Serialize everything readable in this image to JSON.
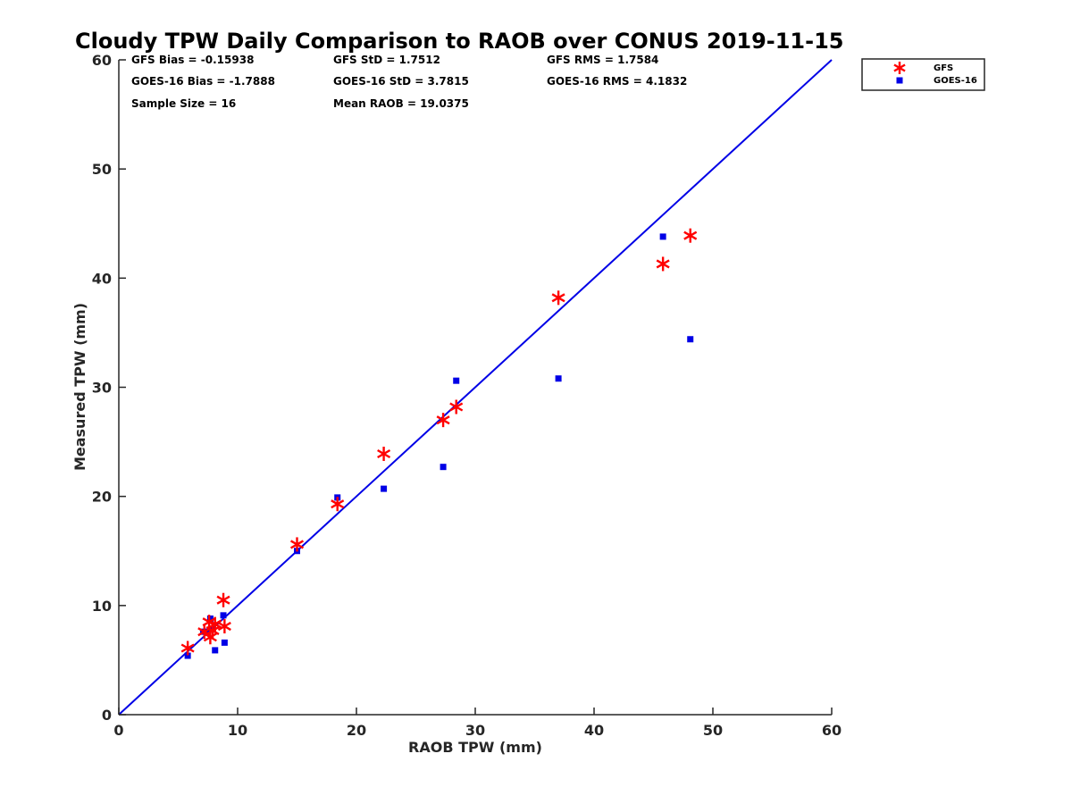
{
  "chart_data": {
    "type": "scatter",
    "title": "Cloudy TPW Daily Comparison to RAOB over CONUS 2019-11-15",
    "xlabel": "RAOB TPW (mm)",
    "ylabel": "Measured TPW (mm)",
    "xlim": [
      0,
      60
    ],
    "ylim": [
      0,
      60
    ],
    "xticks": [
      "0",
      "10",
      "20",
      "30",
      "40",
      "50",
      "60"
    ],
    "yticks": [
      "0",
      "10",
      "20",
      "30",
      "40",
      "50",
      "60"
    ],
    "grid": false,
    "legend_position": "top-right, outside plot",
    "reference_line": {
      "x": [
        0,
        60
      ],
      "y": [
        0,
        60
      ],
      "color": "#0000e6"
    },
    "stats": [
      "GFS Bias = -0.15938",
      "GFS StD = 1.7512",
      "GFS RMS = 1.7584",
      "GOES-16 Bias = -1.7888",
      "GOES-16 StD = 3.7815",
      "GOES-16 RMS = 4.1832",
      "Sample Size = 16",
      "Mean RAOB = 19.0375"
    ],
    "series": [
      {
        "name": "GFS",
        "marker": "asterisk",
        "color": "#ff0000",
        "x": [
          5.8,
          7.2,
          7.6,
          7.7,
          8.1,
          8.8,
          8.9,
          15.0,
          18.4,
          22.3,
          27.3,
          28.4,
          37.0,
          45.8,
          48.1,
          7.9
        ],
        "y": [
          6.1,
          7.6,
          8.5,
          7.1,
          8.3,
          10.5,
          8.1,
          15.6,
          19.3,
          23.9,
          27.0,
          28.2,
          38.2,
          41.3,
          43.9,
          7.7
        ]
      },
      {
        "name": "GOES-16",
        "marker": "square",
        "color": "#0000e6",
        "x": [
          5.8,
          7.1,
          7.5,
          7.7,
          8.1,
          8.8,
          8.9,
          15.0,
          18.4,
          22.3,
          27.3,
          28.4,
          37.0,
          45.8,
          48.1,
          7.9
        ],
        "y": [
          5.4,
          7.6,
          7.6,
          8.8,
          5.9,
          9.1,
          6.6,
          15.0,
          19.9,
          20.7,
          22.7,
          30.6,
          30.8,
          43.8,
          34.4,
          7.8
        ]
      }
    ]
  },
  "colors": {
    "axis": "#262626",
    "gfs": "#ff0000",
    "goes": "#0000e6"
  }
}
